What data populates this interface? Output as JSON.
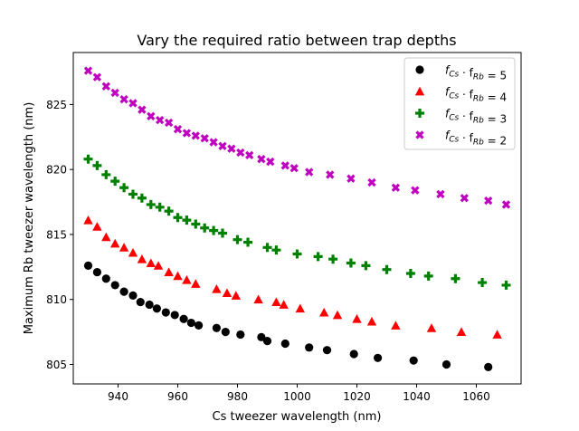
{
  "chart_data": {
    "type": "scatter",
    "title": "Vary the required ratio between trap depths",
    "xlabel": "Cs tweezer wavelength (nm)",
    "ylabel": "Maximum Rb tweezer wavelength (nm)",
    "xlim": [
      925,
      1075
    ],
    "ylim": [
      803.5,
      829.0
    ],
    "xticks": [
      940,
      960,
      980,
      1000,
      1020,
      1040,
      1060
    ],
    "yticks": [
      805,
      810,
      815,
      820,
      825
    ],
    "grid": false,
    "legend_position": "top-right",
    "series": [
      {
        "name": "f_Cs · f_Rb = 5",
        "legend_main": "f",
        "legend_parts": [
          "f",
          "Cs",
          " · f",
          "Rb",
          " = 5"
        ],
        "marker": "circle",
        "color": "#000000",
        "x": [
          930,
          933,
          936,
          939,
          942,
          945,
          947.5,
          950.5,
          953,
          956,
          959,
          962,
          964.5,
          967,
          973,
          976,
          981,
          988,
          990,
          996,
          1004,
          1010,
          1019,
          1027,
          1039,
          1050,
          1064
        ],
        "y": [
          812.6,
          812.1,
          811.6,
          811.1,
          810.6,
          810.3,
          809.8,
          809.6,
          809.3,
          809.0,
          808.8,
          808.5,
          808.2,
          808.0,
          807.8,
          807.5,
          807.3,
          807.1,
          806.8,
          806.6,
          806.3,
          806.1,
          805.8,
          805.5,
          805.3,
          805.0,
          804.8
        ]
      },
      {
        "name": "f_Cs · f_Rb = 4",
        "legend_parts": [
          "f",
          "Cs",
          " · f",
          "Rb",
          " = 4"
        ],
        "marker": "triangle",
        "color": "#ff0000",
        "x": [
          930,
          933,
          936,
          939,
          942,
          945,
          948,
          951,
          953.5,
          957,
          960,
          963,
          966,
          973,
          976.5,
          979.5,
          987,
          993,
          995.5,
          1001,
          1009,
          1013.5,
          1020,
          1025,
          1033,
          1045,
          1055,
          1067
        ],
        "y": [
          816.1,
          815.6,
          814.8,
          814.3,
          814.0,
          813.6,
          813.1,
          812.8,
          812.6,
          812.1,
          811.8,
          811.5,
          811.2,
          810.8,
          810.5,
          810.3,
          810.0,
          809.8,
          809.6,
          809.3,
          809.0,
          808.8,
          808.5,
          808.3,
          808.0,
          807.8,
          807.5,
          807.3
        ]
      },
      {
        "name": "f_Cs · f_Rb = 3",
        "legend_parts": [
          "f",
          "Cs",
          " · f",
          "Rb",
          " = 3"
        ],
        "marker": "plus",
        "color": "#008000",
        "x": [
          930,
          933,
          936,
          939,
          942,
          945,
          948,
          951,
          954,
          957,
          960,
          963,
          966,
          969,
          972,
          975,
          980,
          983.5,
          990,
          993,
          1000,
          1007,
          1012,
          1018,
          1023,
          1030,
          1038,
          1044,
          1053,
          1062,
          1070
        ],
        "y": [
          820.8,
          820.3,
          819.6,
          819.1,
          818.6,
          818.1,
          817.8,
          817.3,
          817.1,
          816.8,
          816.3,
          816.1,
          815.8,
          815.5,
          815.3,
          815.1,
          814.6,
          814.4,
          814.0,
          813.8,
          813.5,
          813.3,
          813.1,
          812.8,
          812.6,
          812.3,
          812.0,
          811.8,
          811.6,
          811.3,
          811.1
        ]
      },
      {
        "name": "f_Cs · f_Rb = 2",
        "legend_parts": [
          "f",
          "Cs",
          " · f",
          "Rb",
          " = 2"
        ],
        "marker": "x",
        "color": "#bf00bf",
        "x": [
          930,
          933,
          936,
          939,
          942,
          945,
          948,
          951,
          954,
          957,
          960,
          963,
          966,
          969,
          972,
          975,
          978,
          981,
          984,
          988,
          991,
          996,
          999,
          1004,
          1011,
          1018,
          1025,
          1033,
          1039.5,
          1048,
          1056,
          1064,
          1070
        ],
        "y": [
          827.6,
          827.1,
          826.4,
          825.9,
          825.4,
          825.1,
          824.6,
          824.1,
          823.8,
          823.6,
          823.1,
          822.8,
          822.6,
          822.4,
          822.1,
          821.8,
          821.6,
          821.3,
          821.1,
          820.8,
          820.6,
          820.3,
          820.1,
          819.8,
          819.6,
          819.3,
          819.0,
          818.6,
          818.4,
          818.1,
          817.8,
          817.6,
          817.3
        ]
      }
    ]
  }
}
